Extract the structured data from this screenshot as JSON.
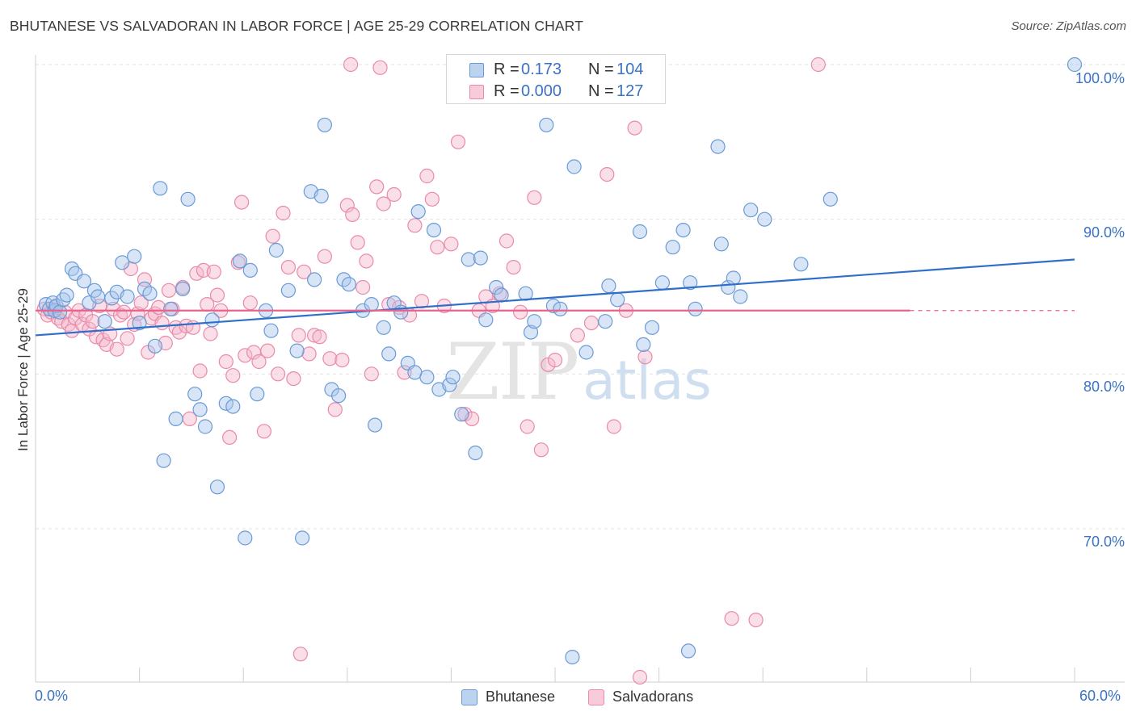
{
  "title": "BHUTANESE VS SALVADORAN IN LABOR FORCE | AGE 25-29 CORRELATION CHART",
  "source": "Source: ZipAtlas.com",
  "watermark": {
    "zip": "ZIP",
    "atlas": "atlas"
  },
  "legend": {
    "rows": [
      {
        "r_label": "R =",
        "r_value": "0.173",
        "n_label": "N =",
        "n_value": "104"
      },
      {
        "r_label": "R =",
        "r_value": "0.000",
        "n_label": "N =",
        "n_value": "127"
      }
    ]
  },
  "bottom_legend": [
    "Bhutanese",
    "Salvadorans"
  ],
  "colors": {
    "blue_fill": "#a9c6ea",
    "blue_stroke": "#6a9ad6",
    "blue_line": "#2f6fcc",
    "pink_fill": "#f5b8cb",
    "pink_stroke": "#e98aa9",
    "pink_line": "#e8638b",
    "axis_text": "#3a72c4",
    "grid": "#e2e2e2"
  },
  "chart_data": {
    "type": "scatter",
    "title": "BHUTANESE VS SALVADORAN IN LABOR FORCE | AGE 25-29 CORRELATION CHART",
    "xlabel": "",
    "ylabel": "In Labor Force | Age 25-29",
    "xlim": [
      0,
      60
    ],
    "ylim": [
      60,
      101
    ],
    "x_tick_labels": [
      "0.0%",
      "60.0%"
    ],
    "y_ticks": [
      70,
      80,
      90,
      100
    ],
    "y_tick_labels": [
      "70.0%",
      "80.0%",
      "90.0%",
      "100.0%"
    ],
    "grid": true,
    "legend_position": "top-center",
    "series": [
      {
        "name": "Bhutanese",
        "r": 0.173,
        "n": 104,
        "trend": {
          "x": [
            0,
            60
          ],
          "y": [
            82.5,
            87.4
          ],
          "dashed_from": null
        },
        "points": [
          [
            0.6,
            84.5
          ],
          [
            0.8,
            84.2
          ],
          [
            1.0,
            84.6
          ],
          [
            1.1,
            84.1
          ],
          [
            1.2,
            84.4
          ],
          [
            1.4,
            84.0
          ],
          [
            1.6,
            84.8
          ],
          [
            1.8,
            85.1
          ],
          [
            2.1,
            86.8
          ],
          [
            2.3,
            86.5
          ],
          [
            2.8,
            86.0
          ],
          [
            3.1,
            84.6
          ],
          [
            3.4,
            85.4
          ],
          [
            3.6,
            85.0
          ],
          [
            4.0,
            83.4
          ],
          [
            4.4,
            84.9
          ],
          [
            4.7,
            85.3
          ],
          [
            5.0,
            87.2
          ],
          [
            5.3,
            85.0
          ],
          [
            5.7,
            87.6
          ],
          [
            6.0,
            83.3
          ],
          [
            6.3,
            85.5
          ],
          [
            6.6,
            85.2
          ],
          [
            6.9,
            81.8
          ],
          [
            7.2,
            92.0
          ],
          [
            7.4,
            74.4
          ],
          [
            7.8,
            84.2
          ],
          [
            8.1,
            77.1
          ],
          [
            8.5,
            85.5
          ],
          [
            8.8,
            91.3
          ],
          [
            9.2,
            78.7
          ],
          [
            9.5,
            77.7
          ],
          [
            9.8,
            76.6
          ],
          [
            10.2,
            83.5
          ],
          [
            10.5,
            72.7
          ],
          [
            11.0,
            78.1
          ],
          [
            11.4,
            77.9
          ],
          [
            11.8,
            87.3
          ],
          [
            12.1,
            69.4
          ],
          [
            12.4,
            86.7
          ],
          [
            12.8,
            78.7
          ],
          [
            13.3,
            84.1
          ],
          [
            13.6,
            82.8
          ],
          [
            13.9,
            88.0
          ],
          [
            14.6,
            85.4
          ],
          [
            15.1,
            81.5
          ],
          [
            15.4,
            69.4
          ],
          [
            15.9,
            91.8
          ],
          [
            16.1,
            86.1
          ],
          [
            16.5,
            91.5
          ],
          [
            16.7,
            96.1
          ],
          [
            17.1,
            79.0
          ],
          [
            17.5,
            78.6
          ],
          [
            17.8,
            86.1
          ],
          [
            18.1,
            85.8
          ],
          [
            18.9,
            84.1
          ],
          [
            19.4,
            84.5
          ],
          [
            19.6,
            76.7
          ],
          [
            20.1,
            83.0
          ],
          [
            20.4,
            81.3
          ],
          [
            20.7,
            84.6
          ],
          [
            21.1,
            84.0
          ],
          [
            21.5,
            80.7
          ],
          [
            21.9,
            80.1
          ],
          [
            22.1,
            90.5
          ],
          [
            22.6,
            79.8
          ],
          [
            23.0,
            89.3
          ],
          [
            23.3,
            79.0
          ],
          [
            23.9,
            79.3
          ],
          [
            24.1,
            79.8
          ],
          [
            24.6,
            77.4
          ],
          [
            25.0,
            87.4
          ],
          [
            25.4,
            74.9
          ],
          [
            25.7,
            87.5
          ],
          [
            26.0,
            83.5
          ],
          [
            26.6,
            85.6
          ],
          [
            26.9,
            85.1
          ],
          [
            28.3,
            85.2
          ],
          [
            28.6,
            82.7
          ],
          [
            28.8,
            83.4
          ],
          [
            29.5,
            96.1
          ],
          [
            29.9,
            84.4
          ],
          [
            30.3,
            84.2
          ],
          [
            31.1,
            93.4
          ],
          [
            31.8,
            81.4
          ],
          [
            32.9,
            83.4
          ],
          [
            33.1,
            85.7
          ],
          [
            33.6,
            84.8
          ],
          [
            34.9,
            89.2
          ],
          [
            35.1,
            81.9
          ],
          [
            35.6,
            83.0
          ],
          [
            36.2,
            85.9
          ],
          [
            36.8,
            88.2
          ],
          [
            37.4,
            89.3
          ],
          [
            37.8,
            85.9
          ],
          [
            38.1,
            84.2
          ],
          [
            39.4,
            94.7
          ],
          [
            39.6,
            88.4
          ],
          [
            40.0,
            85.6
          ],
          [
            40.3,
            86.2
          ],
          [
            40.7,
            85.0
          ],
          [
            41.3,
            90.6
          ],
          [
            42.1,
            90.0
          ],
          [
            44.2,
            87.1
          ],
          [
            45.9,
            91.3
          ],
          [
            31.0,
            61.7
          ],
          [
            37.7,
            62.1
          ],
          [
            60.0,
            100.0
          ]
        ]
      },
      {
        "name": "Salvadorans",
        "r": 0.0,
        "n": 127,
        "trend": {
          "x": [
            0,
            60
          ],
          "y": [
            84.1,
            84.1
          ],
          "dashed_from": 50.5
        },
        "points": [
          [
            0.5,
            84.2
          ],
          [
            0.7,
            83.8
          ],
          [
            0.9,
            84.0
          ],
          [
            1.1,
            84.3
          ],
          [
            1.3,
            83.6
          ],
          [
            1.5,
            83.4
          ],
          [
            1.7,
            84.0
          ],
          [
            1.9,
            83.2
          ],
          [
            2.1,
            82.8
          ],
          [
            2.3,
            83.6
          ],
          [
            2.5,
            84.1
          ],
          [
            2.7,
            83.2
          ],
          [
            2.9,
            83.8
          ],
          [
            3.1,
            82.9
          ],
          [
            3.3,
            83.4
          ],
          [
            3.5,
            82.4
          ],
          [
            3.7,
            84.4
          ],
          [
            3.9,
            82.2
          ],
          [
            4.1,
            81.9
          ],
          [
            4.3,
            82.6
          ],
          [
            4.5,
            84.2
          ],
          [
            4.7,
            81.6
          ],
          [
            4.9,
            83.8
          ],
          [
            5.1,
            84.0
          ],
          [
            5.3,
            82.3
          ],
          [
            5.5,
            86.8
          ],
          [
            5.7,
            83.2
          ],
          [
            5.9,
            83.9
          ],
          [
            6.1,
            84.6
          ],
          [
            6.3,
            86.1
          ],
          [
            6.5,
            81.4
          ],
          [
            6.7,
            83.6
          ],
          [
            6.9,
            83.9
          ],
          [
            7.1,
            84.3
          ],
          [
            7.3,
            83.3
          ],
          [
            7.5,
            82.0
          ],
          [
            7.7,
            85.4
          ],
          [
            7.9,
            84.2
          ],
          [
            8.1,
            83.0
          ],
          [
            8.3,
            82.7
          ],
          [
            8.5,
            85.6
          ],
          [
            8.7,
            83.1
          ],
          [
            8.9,
            77.1
          ],
          [
            9.1,
            83.0
          ],
          [
            9.3,
            86.5
          ],
          [
            9.5,
            80.2
          ],
          [
            9.7,
            86.7
          ],
          [
            9.9,
            84.5
          ],
          [
            10.1,
            82.6
          ],
          [
            10.3,
            86.6
          ],
          [
            10.5,
            85.1
          ],
          [
            10.7,
            84.1
          ],
          [
            11.0,
            80.8
          ],
          [
            11.2,
            75.9
          ],
          [
            11.4,
            79.9
          ],
          [
            11.7,
            87.2
          ],
          [
            11.9,
            91.1
          ],
          [
            12.1,
            81.2
          ],
          [
            12.4,
            84.6
          ],
          [
            12.6,
            81.4
          ],
          [
            12.9,
            80.8
          ],
          [
            13.2,
            76.3
          ],
          [
            13.4,
            81.5
          ],
          [
            13.7,
            88.9
          ],
          [
            14.0,
            80.0
          ],
          [
            14.3,
            90.4
          ],
          [
            14.6,
            86.9
          ],
          [
            14.9,
            79.7
          ],
          [
            15.2,
            82.5
          ],
          [
            15.5,
            86.6
          ],
          [
            15.8,
            81.3
          ],
          [
            16.1,
            82.5
          ],
          [
            16.4,
            82.4
          ],
          [
            16.7,
            87.6
          ],
          [
            17.0,
            81.0
          ],
          [
            17.3,
            77.7
          ],
          [
            17.7,
            80.9
          ],
          [
            18.0,
            90.9
          ],
          [
            18.3,
            90.3
          ],
          [
            18.6,
            88.5
          ],
          [
            18.9,
            85.6
          ],
          [
            19.1,
            87.3
          ],
          [
            19.4,
            80.0
          ],
          [
            19.7,
            92.1
          ],
          [
            20.1,
            91.0
          ],
          [
            20.4,
            84.5
          ],
          [
            20.7,
            91.6
          ],
          [
            21.0,
            84.3
          ],
          [
            21.3,
            80.1
          ],
          [
            21.6,
            83.8
          ],
          [
            21.9,
            89.6
          ],
          [
            22.3,
            84.7
          ],
          [
            22.6,
            92.8
          ],
          [
            22.9,
            91.3
          ],
          [
            23.2,
            88.2
          ],
          [
            23.6,
            84.4
          ],
          [
            24.0,
            88.4
          ],
          [
            24.4,
            95.0
          ],
          [
            24.8,
            77.4
          ],
          [
            25.2,
            77.1
          ],
          [
            25.6,
            84.1
          ],
          [
            26.0,
            85.0
          ],
          [
            26.4,
            84.4
          ],
          [
            26.8,
            85.2
          ],
          [
            27.2,
            88.6
          ],
          [
            27.6,
            86.9
          ],
          [
            28.0,
            84.0
          ],
          [
            28.4,
            76.6
          ],
          [
            28.8,
            91.4
          ],
          [
            29.2,
            75.1
          ],
          [
            29.6,
            80.6
          ],
          [
            30.0,
            80.9
          ],
          [
            31.3,
            82.5
          ],
          [
            32.1,
            83.3
          ],
          [
            33.0,
            92.9
          ],
          [
            33.4,
            76.6
          ],
          [
            34.1,
            84.1
          ],
          [
            34.6,
            95.9
          ],
          [
            35.2,
            81.1
          ],
          [
            15.3,
            61.9
          ],
          [
            18.2,
            100.0
          ],
          [
            19.9,
            99.8
          ],
          [
            28.4,
            100.0
          ],
          [
            40.2,
            64.2
          ],
          [
            41.6,
            64.1
          ],
          [
            45.2,
            100.0
          ],
          [
            34.9,
            60.4
          ]
        ]
      }
    ]
  }
}
